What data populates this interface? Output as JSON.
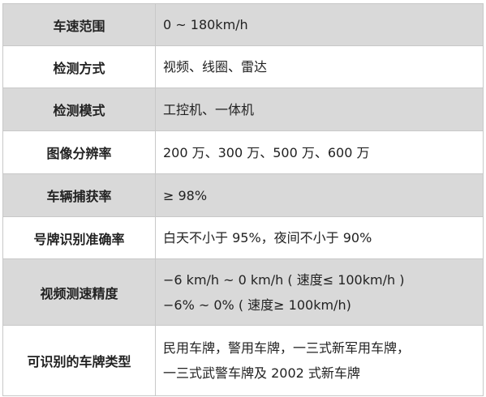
{
  "table": {
    "rows": [
      [
        "车速范围",
        [
          "0 ~ 180km/h"
        ]
      ],
      [
        "检测方式",
        [
          "视频、线圈、雷达"
        ]
      ],
      [
        "检测模式",
        [
          "工控机、一体机"
        ]
      ],
      [
        "图像分辨率",
        [
          "200 万、300 万、500 万、600 万"
        ]
      ],
      [
        "车辆捕获率",
        [
          "≥ 98%"
        ]
      ],
      [
        "号牌识别准确率",
        [
          "白天不小于 95%，夜间不小于 90%"
        ]
      ],
      [
        "视频测速精度",
        [
          "−6 km/h ~ 0 km/h ( 速度≤ 100km/h )",
          " −6% ~ 0% ( 速度≥ 100km/h)"
        ]
      ],
      [
        "可识别的车牌类型",
        [
          "民用车牌，警用车牌，一三式新军用车牌，",
          "一三式武警车牌及 2002 式新车牌"
        ]
      ]
    ]
  }
}
